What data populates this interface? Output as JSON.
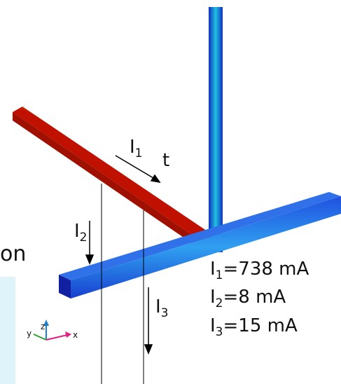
{
  "currents": [
    {
      "symbol": "I",
      "sub": "1"
    },
    {
      "symbol": "I",
      "sub": "2"
    },
    {
      "symbol": "I",
      "sub": "3"
    }
  ],
  "results": [
    {
      "symbol": "I",
      "sub": "1",
      "text": "=738 mA"
    },
    {
      "symbol": "I",
      "sub": "2",
      "text": "=8 mA"
    },
    {
      "symbol": "I",
      "sub": "3",
      "text": "=15 mA"
    }
  ],
  "axes": {
    "x": "x",
    "y": "y",
    "z": "z"
  },
  "fragments": [
    "t",
    "on"
  ]
}
